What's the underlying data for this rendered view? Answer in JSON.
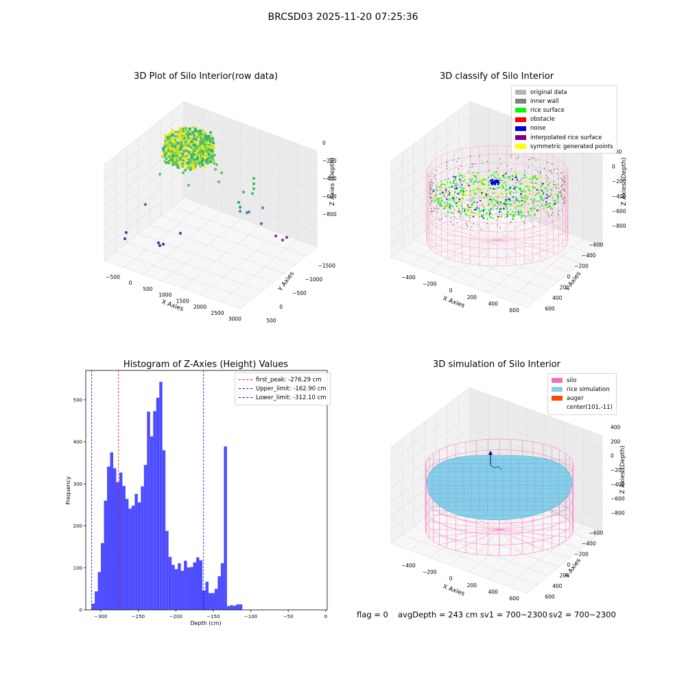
{
  "figure": {
    "suptitle": "BRCSD03 2025-11-20 07:25:36"
  },
  "panels": {
    "raw": {
      "title": "3D Plot of Silo Interior(row data)",
      "xlabel": "X Axies",
      "ylabel": "Y Axies",
      "zlabel": "Z Axies (Depth)",
      "xticks": [
        "−500",
        "0",
        "500",
        "1000",
        "1500",
        "2000",
        "2500",
        "3000"
      ],
      "yticks": [
        "500",
        "0",
        "−500",
        "−1000",
        "−1500"
      ],
      "zticks": [
        "0",
        "−200",
        "−400",
        "−600",
        "−800"
      ]
    },
    "classify": {
      "title": "3D classify of Silo Interior",
      "xlabel": "X Axies",
      "ylabel": "Y Axies",
      "zlabel": "Z Axies (Depth)",
      "xticks": [
        "−400",
        "−200",
        "0",
        "200",
        "400",
        "600"
      ],
      "yticks": [
        "600",
        "400",
        "200",
        "0",
        "−200",
        "−400",
        "−600"
      ],
      "zticks": [
        "200",
        "0",
        "−200",
        "−400",
        "−600",
        "−800"
      ],
      "legend": [
        {
          "label": "original data",
          "color": "#b3b3b3"
        },
        {
          "label": "inner wall",
          "color": "#808080"
        },
        {
          "label": "rice surface",
          "color": "#00ff00"
        },
        {
          "label": "obstacle",
          "color": "#ff0000"
        },
        {
          "label": "noise",
          "color": "#0000dd"
        },
        {
          "label": "interpolated rice surface",
          "color": "#800080"
        },
        {
          "label": "symmetric generated points",
          "color": "#ffff00"
        }
      ]
    },
    "sim": {
      "title": "3D simulation of Silo Interior",
      "xlabel": "X Axies",
      "ylabel": "Y Axies",
      "zlabel": "Z Axies (Depth)",
      "xticks": [
        "−400",
        "−200",
        "0",
        "200",
        "400",
        "600"
      ],
      "yticks": [
        "600",
        "400",
        "200",
        "0",
        "−200",
        "−400",
        "−600"
      ],
      "zticks": [
        "400",
        "200",
        "0",
        "−200",
        "−400",
        "−600",
        "−800"
      ],
      "legend": [
        {
          "label": "silo",
          "color": "#ff69b4"
        },
        {
          "label": "rice simulation",
          "color": "#87ceeb"
        },
        {
          "label": "auger",
          "color": "#ff4500"
        },
        {
          "label": "center(101,-11)",
          "color": ""
        }
      ]
    }
  },
  "status": {
    "flag": "flag = 0",
    "avgDepth": "avgDepth = 243 cm",
    "sv1": "sv1 = 700~2300",
    "sv2": "sv2 = 700~2300"
  },
  "chart_data": [
    {
      "type": "histogram",
      "title": "Histogram of Z-Axies (Height) Values",
      "xlabel": "Depth (cm)",
      "ylabel": "Frequency",
      "xlim": [
        -320,
        2
      ],
      "ylim": [
        0,
        570
      ],
      "bar_color": "#4d4dff",
      "bin_start": -312.1,
      "bin_width": 4.1,
      "values": [
        15,
        44,
        90,
        159,
        260,
        341,
        375,
        337,
        304,
        327,
        295,
        264,
        241,
        248,
        276,
        256,
        294,
        345,
        472,
        413,
        473,
        505,
        543,
        380,
        188,
        126,
        107,
        97,
        111,
        93,
        117,
        101,
        102,
        113,
        125,
        118,
        46,
        67,
        40,
        40,
        50,
        80,
        111,
        389,
        9,
        11,
        10,
        13,
        13
      ],
      "xticks": [
        -300,
        -250,
        -200,
        -150,
        -100,
        -50,
        0
      ],
      "xtick_labels": [
        "−300",
        "−250",
        "−200",
        "−150",
        "−100",
        "−50",
        "0"
      ],
      "yticks": [
        0,
        100,
        200,
        300,
        400,
        500
      ],
      "yticks_labels": [
        "0",
        "100",
        "200",
        "300",
        "400",
        "500"
      ],
      "vlines": [
        {
          "label": "first_peak: -276.29 cm",
          "x": -276.29,
          "color": "#ff0000"
        },
        {
          "label": "Upper_limit: -162.90 cm",
          "x": -162.9,
          "color": "#0000cc"
        },
        {
          "label": "Lower_limit: -312.10 cm",
          "x": -312.1,
          "color": "#0000cc"
        }
      ],
      "legend_position": "upper right"
    }
  ]
}
